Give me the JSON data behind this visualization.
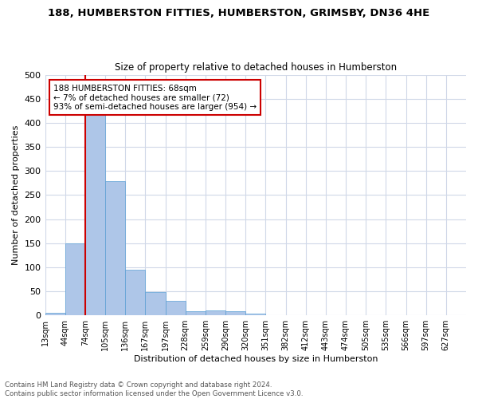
{
  "title1": "188, HUMBERSTON FITTIES, HUMBERSTON, GRIMSBY, DN36 4HE",
  "title2": "Size of property relative to detached houses in Humberston",
  "xlabel": "Distribution of detached houses by size in Humberston",
  "ylabel": "Number of detached properties",
  "footer_line1": "Contains HM Land Registry data © Crown copyright and database right 2024.",
  "footer_line2": "Contains public sector information licensed under the Open Government Licence v3.0.",
  "bin_labels": [
    "13sqm",
    "44sqm",
    "74sqm",
    "105sqm",
    "136sqm",
    "167sqm",
    "197sqm",
    "228sqm",
    "259sqm",
    "290sqm",
    "320sqm",
    "351sqm",
    "382sqm",
    "412sqm",
    "443sqm",
    "474sqm",
    "505sqm",
    "535sqm",
    "566sqm",
    "597sqm",
    "627sqm"
  ],
  "bar_values": [
    5,
    150,
    420,
    278,
    95,
    49,
    30,
    8,
    11,
    8,
    4,
    0,
    0,
    0,
    0,
    0,
    0,
    0,
    0,
    0,
    0
  ],
  "bar_color": "#aec6e8",
  "bar_edge_color": "#5a9fd4",
  "grid_color": "#d0d8e8",
  "vline_color": "#cc0000",
  "annotation_text": "188 HUMBERSTON FITTIES: 68sqm\n← 7% of detached houses are smaller (72)\n93% of semi-detached houses are larger (954) →",
  "annotation_box_color": "#ffffff",
  "annotation_border_color": "#cc0000",
  "ylim": [
    0,
    500
  ],
  "yticks": [
    0,
    50,
    100,
    150,
    200,
    250,
    300,
    350,
    400,
    450,
    500
  ]
}
